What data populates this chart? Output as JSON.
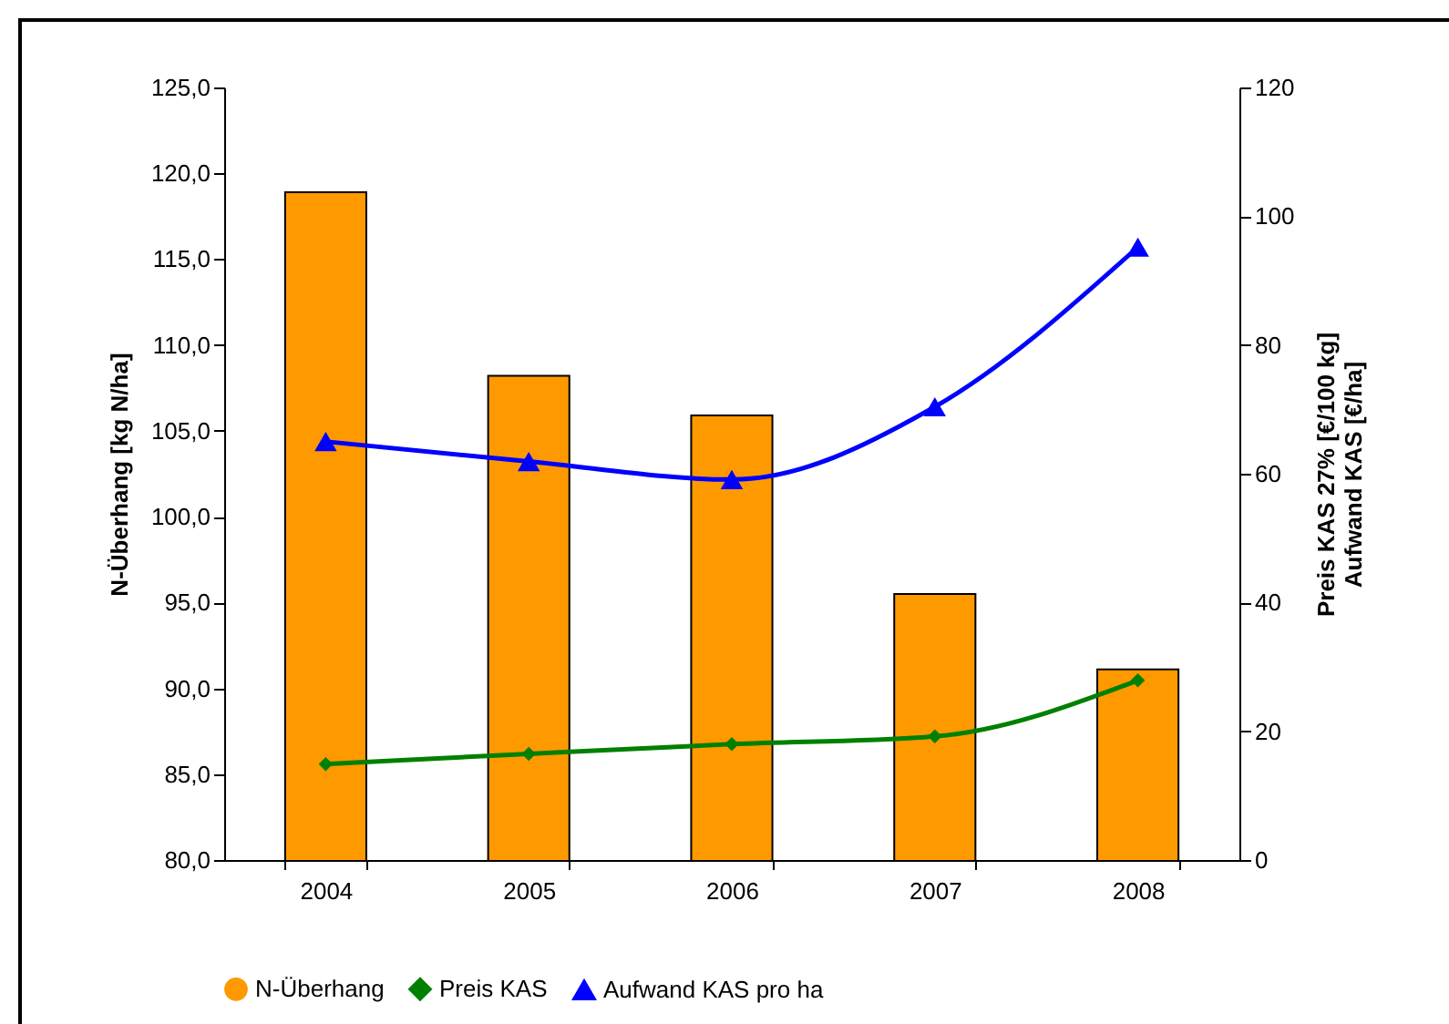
{
  "chart_data": {
    "type": "bar",
    "ylabel": "N-Überhang [kg N/ha]",
    "y2label": "Preis KAS 27% [€/100 kg]\nAufwand KAS [€/ha]",
    "categories": [
      "2004",
      "2005",
      "2006",
      "2007",
      "2008"
    ],
    "series": [
      {
        "name": "N-Überhang",
        "color": "#ff9900",
        "values": [
          118.9,
          108.2,
          105.9,
          95.5,
          91.1
        ]
      },
      {
        "name": "Preis KAS",
        "type": "line",
        "axis": "y2",
        "marker": "diamond",
        "color": "#008000",
        "values": [
          14.9,
          16.5,
          18.0,
          19.2,
          27.9
        ]
      },
      {
        "name": "Aufwand KAS pro ha",
        "type": "line",
        "axis": "y2",
        "marker": "triangle",
        "color": "#0000ff",
        "values": [
          65.0,
          61.9,
          59.1,
          70.4,
          95.2
        ]
      }
    ],
    "ylim": [
      80,
      125
    ],
    "yticks": [
      {
        "value": 80,
        "label": "80,0"
      },
      {
        "value": 85,
        "label": "85,0"
      },
      {
        "value": 90,
        "label": "90,0"
      },
      {
        "value": 95,
        "label": "95,0"
      },
      {
        "value": 100,
        "label": "100,0"
      },
      {
        "value": 105,
        "label": "105,0"
      },
      {
        "value": 110,
        "label": "110,0"
      },
      {
        "value": 115,
        "label": "115,0"
      },
      {
        "value": 120,
        "label": "120,0"
      },
      {
        "value": 125,
        "label": "125,0"
      }
    ],
    "y2lim": [
      0,
      120
    ],
    "y2ticks": [
      0,
      20,
      40,
      60,
      80,
      100,
      120
    ],
    "grid": false,
    "legend": "bottom",
    "line_style": "solid"
  }
}
